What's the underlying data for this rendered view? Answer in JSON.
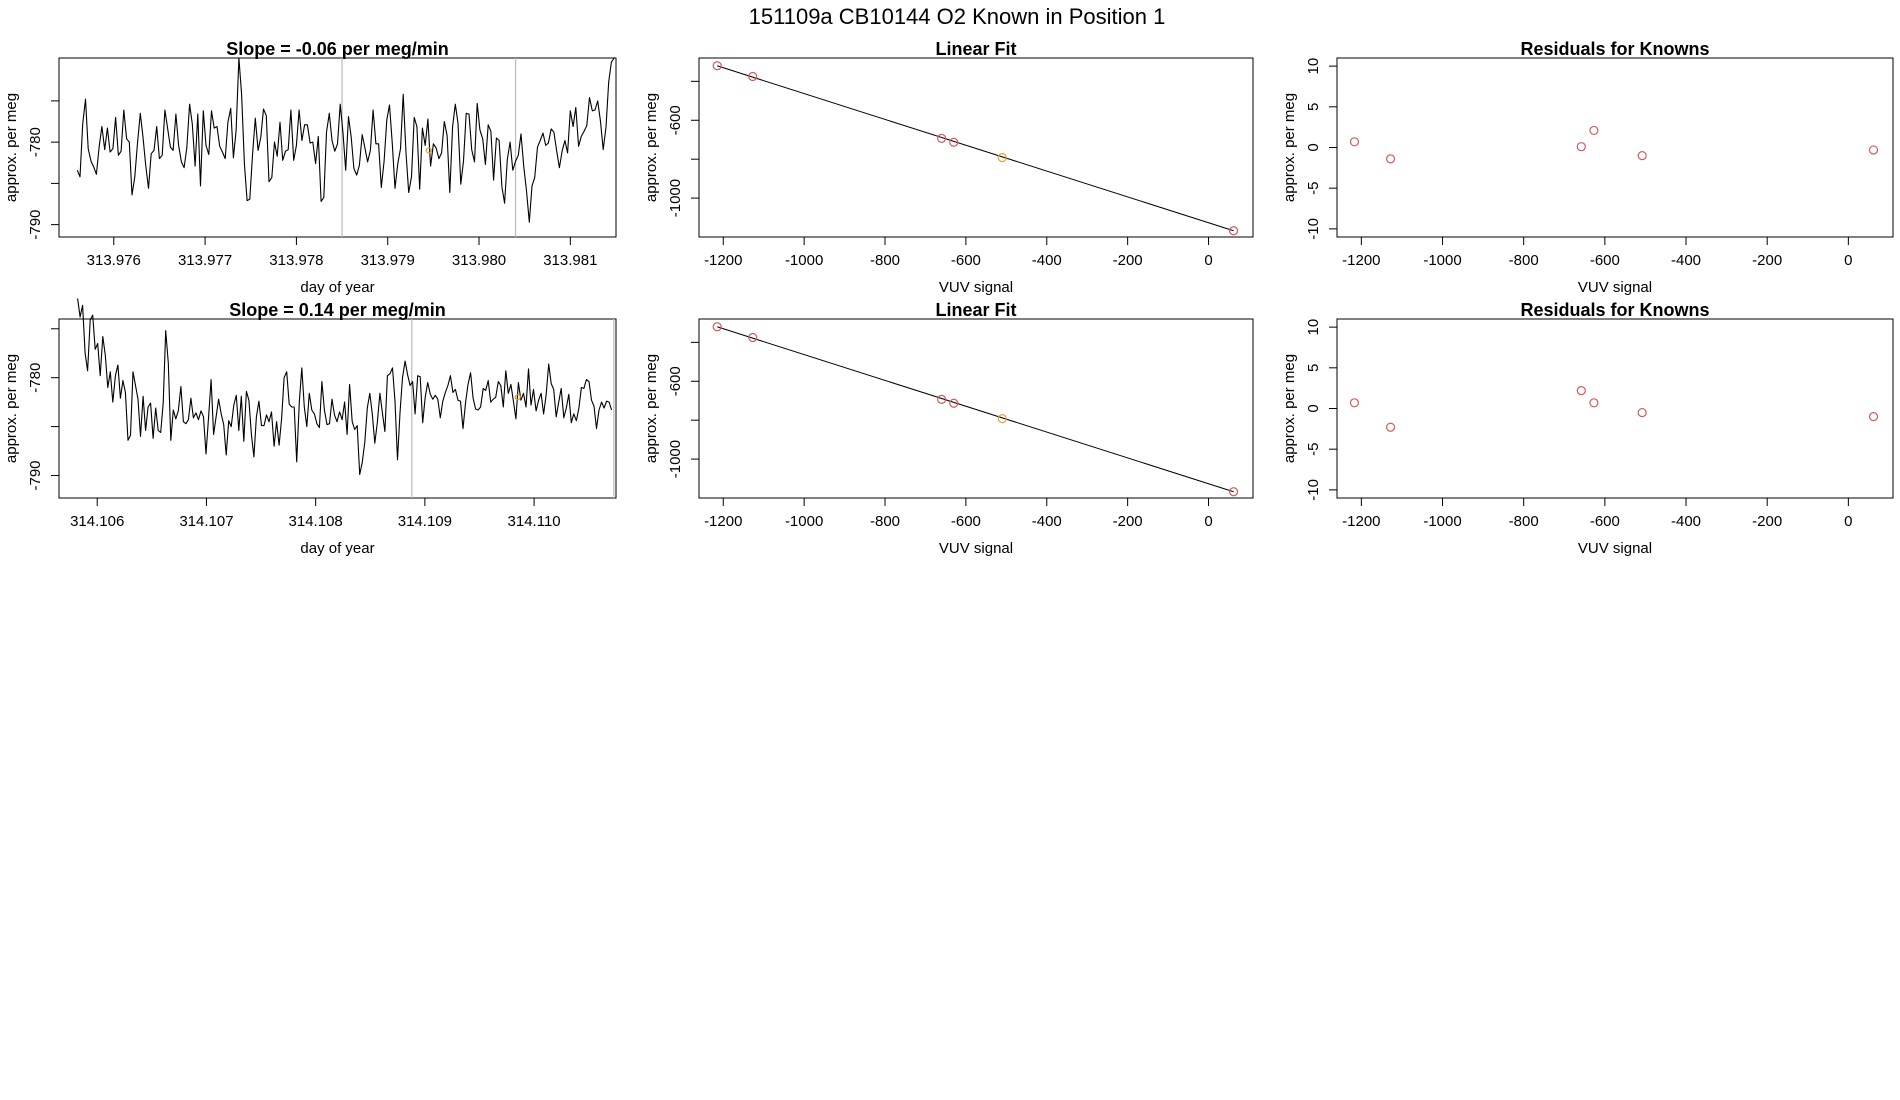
{
  "figure_title": "151109a     CB10144   O2 Known in Position  1",
  "colors": {
    "trace": "#000000",
    "point": "#d45a5a",
    "highlight": "#e8a030",
    "frame": "#000000",
    "vline": "#bbbbbb"
  },
  "chart_data": [
    {
      "id": "ts1",
      "type": "line",
      "title": "Slope =  -0.06  per meg/min",
      "xlabel": "day of year",
      "ylabel": "approx. per meg",
      "xlim": [
        313.9754,
        313.9815
      ],
      "ylim": [
        -791.5,
        -769.8
      ],
      "xticks": [
        313.976,
        313.977,
        313.978,
        313.979,
        313.98,
        313.981
      ],
      "xtick_labels": [
        "313.976",
        "313.977",
        "313.978",
        "313.979",
        "313.980",
        "313.981"
      ],
      "yticks": [
        -790,
        -785,
        -780,
        -775
      ],
      "ytick_labels": [
        "-790",
        "",
        "-780",
        ""
      ],
      "vlines": [
        313.9785,
        313.9804
      ],
      "marker": {
        "x": 313.97945,
        "y": -781.0
      },
      "x_start": 313.9756,
      "x_end": 313.98148,
      "y_values": [
        -783.4,
        -784.2,
        -777.8,
        -774.8,
        -780.8,
        -782.3,
        -783.0,
        -783.9,
        -780.5,
        -778.1,
        -780.9,
        -778.3,
        -781.2,
        -780.8,
        -777.0,
        -781.6,
        -781.1,
        -776.1,
        -779.6,
        -780.0,
        -786.4,
        -784.2,
        -780.1,
        -776.5,
        -779.4,
        -782.8,
        -785.6,
        -781.4,
        -781.0,
        -778.1,
        -782.0,
        -781.6,
        -776.1,
        -778.4,
        -780.6,
        -781.0,
        -776.6,
        -780.4,
        -782.4,
        -783.1,
        -780.7,
        -775.4,
        -777.8,
        -782.9,
        -776.6,
        -785.3,
        -776.2,
        -780.4,
        -781.5,
        -776.2,
        -778.3,
        -778.1,
        -780.5,
        -781.2,
        -782.0,
        -777.6,
        -775.9,
        -781.9,
        -778.6,
        -769.8,
        -774.2,
        -782.6,
        -787.1,
        -786.9,
        -781.4,
        -777.1,
        -781.0,
        -779.4,
        -776.0,
        -776.8,
        -784.8,
        -784.3,
        -780.0,
        -781.7,
        -777.6,
        -782.2,
        -781.1,
        -780.9,
        -776.1,
        -782.2,
        -780.4,
        -776.1,
        -779.8,
        -777.9,
        -777.9,
        -780.1,
        -780.0,
        -782.6,
        -779.3,
        -787.2,
        -786.7,
        -778.8,
        -776.5,
        -779.8,
        -781.1,
        -780.2,
        -775.4,
        -778.9,
        -783.4,
        -776.9,
        -779.4,
        -783.2,
        -784.0,
        -782.8,
        -779.1,
        -780.7,
        -782.4,
        -781.0,
        -776.1,
        -780.2,
        -780.2,
        -785.5,
        -782.3,
        -777.3,
        -775.5,
        -780.2,
        -785.6,
        -782.6,
        -780.8,
        -774.2,
        -781.3,
        -786.1,
        -784.2,
        -777.0,
        -778.1,
        -785.7,
        -778.3,
        -780.4,
        -777.2,
        -782.9,
        -780.2,
        -780.7,
        -782.0,
        -781.3,
        -777.5,
        -779.2,
        -786.1,
        -778.1,
        -775.4,
        -777.7,
        -785.1,
        -782.3,
        -776.5,
        -776.6,
        -780.9,
        -782.4,
        -775.3,
        -778.5,
        -779.6,
        -782.7,
        -777.9,
        -778.7,
        -784.6,
        -779.5,
        -779.8,
        -785.4,
        -787.4,
        -782.1,
        -780.0,
        -783.4,
        -782.3,
        -781.6,
        -779.0,
        -783.0,
        -785.9,
        -789.7,
        -785.3,
        -784.3,
        -780.6,
        -779.8,
        -778.9,
        -780.4,
        -780.1,
        -778.4,
        -778.8,
        -781.0,
        -783.1,
        -781.1,
        -779.8,
        -781.3,
        -776.2,
        -778.1,
        -775.8,
        -780.5,
        -779.3,
        -778.7,
        -778.0,
        -774.6,
        -776.2,
        -776.1,
        -775.0,
        -777.5,
        -780.9,
        -778.2,
        -772.7,
        -770.3,
        -769.8
      ]
    },
    {
      "id": "fit1",
      "type": "scatter",
      "title": "Linear Fit",
      "xlabel": "VUV signal",
      "ylabel": "approx. per meg",
      "xlim": [
        -1260,
        110
      ],
      "ylim": [
        -1200,
        -280
      ],
      "xticks": [
        -1200,
        -1000,
        -800,
        -600,
        -400,
        -200,
        0
      ],
      "xtick_labels": [
        "-1200",
        "-1000",
        "-800",
        "-600",
        "-400",
        "-200",
        "0"
      ],
      "yticks": [
        -1000,
        -800,
        -600,
        -400
      ],
      "ytick_labels": [
        "-1000",
        "",
        "-600",
        ""
      ],
      "points": [
        {
          "x": -1215,
          "y": -320
        },
        {
          "x": -1127,
          "y": -375
        },
        {
          "x": -660,
          "y": -693
        },
        {
          "x": -630,
          "y": -713
        },
        {
          "x": -510,
          "y": -792
        },
        {
          "x": 62,
          "y": -1168
        }
      ],
      "highlight_index": 4,
      "fit_line": [
        {
          "x": -1215,
          "y": -320
        },
        {
          "x": 62,
          "y": -1168
        }
      ]
    },
    {
      "id": "res1",
      "type": "scatter",
      "title": "Residuals for Knowns",
      "xlabel": "VUV signal",
      "ylabel": "approx. per meg",
      "xlim": [
        -1260,
        110
      ],
      "ylim": [
        -11,
        11
      ],
      "xticks": [
        -1200,
        -1000,
        -800,
        -600,
        -400,
        -200,
        0
      ],
      "xtick_labels": [
        "-1200",
        "-1000",
        "-800",
        "-600",
        "-400",
        "-200",
        "0"
      ],
      "yticks": [
        -10,
        -5,
        0,
        5,
        10
      ],
      "ytick_labels": [
        "-10",
        "-5",
        "0",
        "5",
        "10"
      ],
      "points": [
        {
          "x": -1217,
          "y": 0.7
        },
        {
          "x": -1128,
          "y": -1.4
        },
        {
          "x": -658,
          "y": 0.1
        },
        {
          "x": -627,
          "y": 2.1
        },
        {
          "x": -508,
          "y": -1.0
        },
        {
          "x": 62,
          "y": -0.3
        }
      ]
    },
    {
      "id": "ts2",
      "type": "line",
      "title": "Slope =  0.14  per meg/min",
      "xlabel": "day of year",
      "ylabel": "approx. per meg",
      "xlim": [
        314.10565,
        314.11075
      ],
      "ylim": [
        -792.3,
        -774.0
      ],
      "xticks": [
        314.106,
        314.107,
        314.108,
        314.109,
        314.11
      ],
      "xtick_labels": [
        "314.106",
        "314.107",
        "314.108",
        "314.109",
        "314.110"
      ],
      "yticks": [
        -790,
        -785,
        -780,
        -775
      ],
      "ytick_labels": [
        "-790",
        "",
        "-780",
        ""
      ],
      "vlines": [
        314.10888,
        314.11073
      ],
      "marker": {
        "x": 314.10985,
        "y": -782.0
      },
      "x_start": 314.10582,
      "x_end": 314.11071,
      "y_values": [
        -771.9,
        -773.8,
        -772.6,
        -777.5,
        -779.3,
        -774.1,
        -773.6,
        -777.1,
        -776.5,
        -779.8,
        -775.8,
        -777.7,
        -781.0,
        -779.4,
        -782.5,
        -779.8,
        -778.7,
        -782.1,
        -780.3,
        -781.5,
        -786.4,
        -785.9,
        -779.4,
        -780.8,
        -782.2,
        -786.0,
        -781.9,
        -785.4,
        -783.0,
        -782.6,
        -786.2,
        -783.1,
        -785.4,
        -785.6,
        -782.6,
        -775.2,
        -778.5,
        -786.4,
        -783.3,
        -784.2,
        -783.4,
        -780.9,
        -784.5,
        -784.7,
        -784.3,
        -782.1,
        -784.1,
        -783.6,
        -784.3,
        -783.4,
        -784.0,
        -787.8,
        -784.0,
        -780.2,
        -785.8,
        -784.0,
        -782.2,
        -783.7,
        -784.8,
        -787.9,
        -784.4,
        -785.0,
        -782.8,
        -781.8,
        -785.4,
        -781.9,
        -786.5,
        -781.4,
        -782.3,
        -785.8,
        -788.1,
        -784.0,
        -782.4,
        -784.9,
        -784.9,
        -783.8,
        -784.5,
        -783.5,
        -787.0,
        -784.5,
        -786.9,
        -784.2,
        -780.0,
        -779.4,
        -782.7,
        -783.0,
        -783.0,
        -788.6,
        -782.5,
        -779.0,
        -783.0,
        -785.0,
        -781.6,
        -783.3,
        -783.7,
        -784.7,
        -785.1,
        -780.4,
        -783.3,
        -784.8,
        -784.7,
        -782.2,
        -783.8,
        -784.5,
        -783.5,
        -784.3,
        -782.5,
        -785.8,
        -780.7,
        -784.5,
        -785.3,
        -784.9,
        -789.9,
        -788.7,
        -786.6,
        -783.1,
        -781.6,
        -783.7,
        -786.7,
        -784.6,
        -781.6,
        -783.6,
        -785.5,
        -779.8,
        -779.6,
        -779.0,
        -782.4,
        -788.4,
        -783.6,
        -780.0,
        -778.3,
        -779.7,
        -780.8,
        -780.4,
        -783.7,
        -779.8,
        -779.9,
        -784.6,
        -782.0,
        -780.5,
        -781.7,
        -782.2,
        -781.8,
        -782.2,
        -784.1,
        -782.4,
        -781.5,
        -780.8,
        -779.8,
        -781.5,
        -781.2,
        -782.3,
        -782.4,
        -785.2,
        -782.6,
        -780.7,
        -779.5,
        -782.1,
        -783.2,
        -783.3,
        -783.0,
        -781.1,
        -781.3,
        -780.3,
        -782.5,
        -782.2,
        -782.0,
        -780.4,
        -780.8,
        -783.0,
        -779.3,
        -781.6,
        -780.7,
        -782.4,
        -784.2,
        -780.5,
        -782.3,
        -781.6,
        -783.0,
        -779.1,
        -782.8,
        -781.2,
        -783.4,
        -782.3,
        -781.6,
        -783.7,
        -781.8,
        -778.6,
        -780.6,
        -781.2,
        -784.0,
        -782.5,
        -781.1,
        -784.1,
        -783.1,
        -781.7,
        -784.6,
        -783.7,
        -784.4,
        -783.1,
        -781.0,
        -781.1,
        -780.2,
        -780.4,
        -782.3,
        -782.9,
        -785.2,
        -783.3,
        -782.5,
        -783.1,
        -782.4,
        -782.5,
        -783.3
      ]
    },
    {
      "id": "fit2",
      "type": "scatter",
      "title": "Linear Fit",
      "xlabel": "VUV signal",
      "ylabel": "approx. per meg",
      "xlim": [
        -1260,
        110
      ],
      "ylim": [
        -1200,
        -280
      ],
      "xticks": [
        -1200,
        -1000,
        -800,
        -600,
        -400,
        -200,
        0
      ],
      "xtick_labels": [
        "-1200",
        "-1000",
        "-800",
        "-600",
        "-400",
        "-200",
        "0"
      ],
      "yticks": [
        -1000,
        -800,
        -600,
        -400
      ],
      "ytick_labels": [
        "-1000",
        "",
        "-600",
        ""
      ],
      "points": [
        {
          "x": -1215,
          "y": -320
        },
        {
          "x": -1127,
          "y": -375
        },
        {
          "x": -660,
          "y": -693
        },
        {
          "x": -630,
          "y": -713
        },
        {
          "x": -510,
          "y": -792
        },
        {
          "x": 62,
          "y": -1168
        }
      ],
      "highlight_index": 4,
      "fit_line": [
        {
          "x": -1215,
          "y": -320
        },
        {
          "x": 62,
          "y": -1168
        }
      ]
    },
    {
      "id": "res2",
      "type": "scatter",
      "title": "Residuals for Knowns",
      "xlabel": "VUV signal",
      "ylabel": "approx. per meg",
      "xlim": [
        -1260,
        110
      ],
      "ylim": [
        -11,
        11
      ],
      "xticks": [
        -1200,
        -1000,
        -800,
        -600,
        -400,
        -200,
        0
      ],
      "xtick_labels": [
        "-1200",
        "-1000",
        "-800",
        "-600",
        "-400",
        "-200",
        "0"
      ],
      "yticks": [
        -10,
        -5,
        0,
        5,
        10
      ],
      "ytick_labels": [
        "-10",
        "-5",
        "0",
        "5",
        "10"
      ],
      "points": [
        {
          "x": -1217,
          "y": 0.7
        },
        {
          "x": -1128,
          "y": -2.3
        },
        {
          "x": -658,
          "y": 2.2
        },
        {
          "x": -627,
          "y": 0.7
        },
        {
          "x": -508,
          "y": -0.5
        },
        {
          "x": 62,
          "y": -1.0
        }
      ]
    }
  ]
}
